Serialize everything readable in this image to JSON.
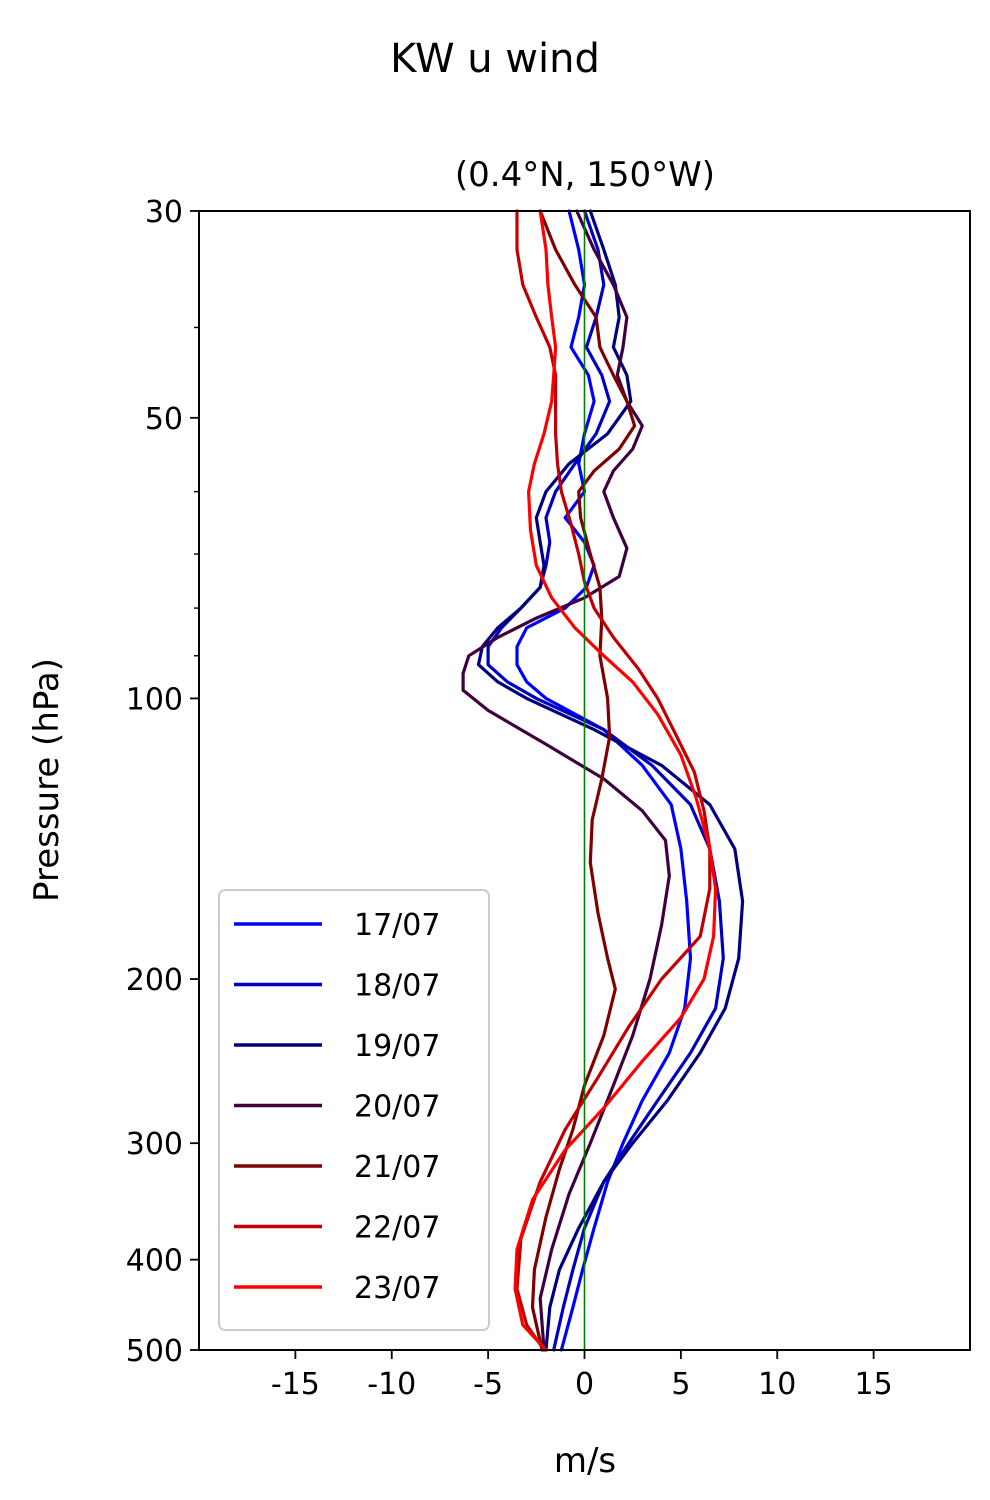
{
  "chart_data": {
    "type": "line",
    "title": "KW u wind",
    "subtitle": "(0.4°N, 150°W)",
    "xlabel": "m/s",
    "ylabel": "Pressure (hPa)",
    "xlim": [
      -20,
      20
    ],
    "ylim": [
      500,
      30
    ],
    "yscale": "log",
    "x_ticks": [
      -15,
      -10,
      -5,
      0,
      5,
      10,
      15
    ],
    "x_tick_labels": [
      "-15",
      "-10",
      "-5",
      "0",
      "5",
      "10",
      "15"
    ],
    "y_ticks": [
      30,
      50,
      100,
      200,
      300,
      400,
      500
    ],
    "y_tick_labels": [
      "30",
      "50",
      "100",
      "200",
      "300",
      "400",
      "500"
    ],
    "y_minor_ticks": [
      40,
      60,
      70,
      80,
      90
    ],
    "legend": "lower-left",
    "grid": false,
    "zero_line": {
      "x": 0,
      "color": "#008000"
    },
    "series": [
      {
        "name": "17/07",
        "color": "#0000ff",
        "values": [
          [
            -0.8,
            30
          ],
          [
            -0.3,
            33
          ],
          [
            0,
            36
          ],
          [
            -0.3,
            39
          ],
          [
            -0.7,
            42
          ],
          [
            0.2,
            45
          ],
          [
            0.5,
            48
          ],
          [
            0,
            52
          ],
          [
            -0.3,
            56
          ],
          [
            0,
            60
          ],
          [
            -1,
            64
          ],
          [
            0,
            68
          ],
          [
            0.5,
            72
          ],
          [
            0.1,
            76
          ],
          [
            -1,
            80
          ],
          [
            -3,
            84
          ],
          [
            -3.5,
            88
          ],
          [
            -3.5,
            92
          ],
          [
            -3,
            96
          ],
          [
            -2,
            100
          ],
          [
            1,
            108
          ],
          [
            3,
            118
          ],
          [
            4.5,
            130
          ],
          [
            5,
            145
          ],
          [
            5.3,
            165
          ],
          [
            5.5,
            190
          ],
          [
            5.2,
            215
          ],
          [
            4.4,
            240
          ],
          [
            3,
            270
          ],
          [
            2,
            300
          ],
          [
            1.2,
            330
          ],
          [
            0.5,
            370
          ],
          [
            -0.1,
            410
          ],
          [
            -0.6,
            450
          ],
          [
            -1.2,
            500
          ]
        ]
      },
      {
        "name": "18/07",
        "color": "#0000c0",
        "values": [
          [
            0,
            30
          ],
          [
            0.7,
            33
          ],
          [
            1,
            36
          ],
          [
            0.6,
            39
          ],
          [
            0.1,
            42
          ],
          [
            0.9,
            45
          ],
          [
            1.3,
            48
          ],
          [
            0.6,
            52
          ],
          [
            -0.5,
            56
          ],
          [
            -1.5,
            60
          ],
          [
            -2,
            64
          ],
          [
            -1.8,
            68
          ],
          [
            -2,
            72
          ],
          [
            -2.3,
            76
          ],
          [
            -3.3,
            80
          ],
          [
            -4.3,
            84
          ],
          [
            -5,
            88
          ],
          [
            -5,
            92
          ],
          [
            -4,
            96
          ],
          [
            -2.5,
            100
          ],
          [
            1,
            108
          ],
          [
            3.5,
            118
          ],
          [
            5.5,
            130
          ],
          [
            6.5,
            145
          ],
          [
            7,
            165
          ],
          [
            7.2,
            190
          ],
          [
            6.8,
            215
          ],
          [
            5.5,
            240
          ],
          [
            3.8,
            270
          ],
          [
            2.3,
            300
          ],
          [
            1,
            330
          ],
          [
            0,
            370
          ],
          [
            -0.6,
            410
          ],
          [
            -1.1,
            450
          ],
          [
            -1.6,
            500
          ]
        ]
      },
      {
        "name": "19/07",
        "color": "#00007f",
        "values": [
          [
            0.3,
            30
          ],
          [
            1,
            33
          ],
          [
            1.6,
            36
          ],
          [
            1.8,
            39
          ],
          [
            1.5,
            42
          ],
          [
            2.2,
            45
          ],
          [
            2.4,
            48
          ],
          [
            1.2,
            52
          ],
          [
            -0.8,
            56
          ],
          [
            -2,
            60
          ],
          [
            -2.5,
            64
          ],
          [
            -2.3,
            68
          ],
          [
            -2.1,
            72
          ],
          [
            -2.3,
            76
          ],
          [
            -3.3,
            80
          ],
          [
            -4.5,
            84
          ],
          [
            -5.3,
            88
          ],
          [
            -5.5,
            92
          ],
          [
            -4.5,
            96
          ],
          [
            -3,
            100
          ],
          [
            0.5,
            108
          ],
          [
            4,
            118
          ],
          [
            6.5,
            130
          ],
          [
            7.8,
            145
          ],
          [
            8.2,
            165
          ],
          [
            8,
            190
          ],
          [
            7.3,
            215
          ],
          [
            6,
            240
          ],
          [
            4.3,
            270
          ],
          [
            2.5,
            300
          ],
          [
            1,
            330
          ],
          [
            -0.3,
            370
          ],
          [
            -1.3,
            410
          ],
          [
            -1.8,
            450
          ],
          [
            -2,
            500
          ]
        ]
      },
      {
        "name": "20/07",
        "color": "#3f003f",
        "values": [
          [
            -0.4,
            30
          ],
          [
            0.5,
            33
          ],
          [
            1.5,
            36
          ],
          [
            2.2,
            39
          ],
          [
            2,
            42
          ],
          [
            1.7,
            45
          ],
          [
            2.2,
            48
          ],
          [
            3,
            51
          ],
          [
            2.5,
            54
          ],
          [
            1.5,
            57
          ],
          [
            1,
            60
          ],
          [
            1.5,
            64
          ],
          [
            2.2,
            69
          ],
          [
            1.8,
            74
          ],
          [
            0,
            78
          ],
          [
            -2.5,
            82
          ],
          [
            -4.5,
            86
          ],
          [
            -6,
            90
          ],
          [
            -6.3,
            94
          ],
          [
            -6.3,
            98
          ],
          [
            -5,
            103
          ],
          [
            -2,
            112
          ],
          [
            1,
            122
          ],
          [
            3,
            132
          ],
          [
            4.2,
            142
          ],
          [
            4.4,
            155
          ],
          [
            4,
            175
          ],
          [
            3.4,
            200
          ],
          [
            2.5,
            230
          ],
          [
            1.5,
            260
          ],
          [
            0.3,
            300
          ],
          [
            -0.8,
            340
          ],
          [
            -1.7,
            390
          ],
          [
            -2.3,
            440
          ],
          [
            -2.1,
            500
          ]
        ]
      },
      {
        "name": "21/07",
        "color": "#7f0000",
        "values": [
          [
            -2.3,
            30
          ],
          [
            -1.5,
            33
          ],
          [
            -0.5,
            36
          ],
          [
            0.6,
            39
          ],
          [
            0.8,
            42
          ],
          [
            1.5,
            45
          ],
          [
            2.2,
            48
          ],
          [
            2.6,
            51
          ],
          [
            1.8,
            54
          ],
          [
            0.5,
            57
          ],
          [
            -0.3,
            60
          ],
          [
            -0.2,
            64
          ],
          [
            0.3,
            70
          ],
          [
            0.8,
            76
          ],
          [
            0.9,
            82
          ],
          [
            0.8,
            90
          ],
          [
            1.2,
            100
          ],
          [
            1.3,
            110
          ],
          [
            0.9,
            122
          ],
          [
            0.4,
            135
          ],
          [
            0.3,
            150
          ],
          [
            0.7,
            170
          ],
          [
            1.2,
            190
          ],
          [
            1.6,
            205
          ],
          [
            1,
            230
          ],
          [
            0,
            260
          ],
          [
            -0.6,
            290
          ],
          [
            -1.3,
            320
          ],
          [
            -2,
            360
          ],
          [
            -2.6,
            410
          ],
          [
            -2.7,
            450
          ],
          [
            -2.2,
            500
          ]
        ]
      },
      {
        "name": "22/07",
        "color": "#bf0000",
        "values": [
          [
            -3.5,
            30
          ],
          [
            -3.5,
            33
          ],
          [
            -3.2,
            36
          ],
          [
            -2.5,
            39
          ],
          [
            -1.8,
            42
          ],
          [
            -1.5,
            45
          ],
          [
            -1.5,
            48
          ],
          [
            -1.5,
            52
          ],
          [
            -1.4,
            56
          ],
          [
            -1.2,
            60
          ],
          [
            -0.7,
            65
          ],
          [
            -0.3,
            70
          ],
          [
            0,
            75
          ],
          [
            0.5,
            80
          ],
          [
            1.5,
            86
          ],
          [
            2.8,
            93
          ],
          [
            3.8,
            100
          ],
          [
            4.8,
            110
          ],
          [
            5.7,
            120
          ],
          [
            6.2,
            132
          ],
          [
            6.5,
            145
          ],
          [
            6.5,
            160
          ],
          [
            6,
            180
          ],
          [
            4,
            200
          ],
          [
            2.3,
            225
          ],
          [
            0.7,
            255
          ],
          [
            -1,
            290
          ],
          [
            -2.3,
            330
          ],
          [
            -3.3,
            380
          ],
          [
            -3.5,
            430
          ],
          [
            -3,
            470
          ],
          [
            -2.1,
            500
          ]
        ]
      },
      {
        "name": "23/07",
        "color": "#ff0000",
        "values": [
          [
            -2.3,
            30
          ],
          [
            -2,
            33
          ],
          [
            -1.9,
            36
          ],
          [
            -1.7,
            39
          ],
          [
            -1.5,
            42
          ],
          [
            -1.6,
            45
          ],
          [
            -1.7,
            48
          ],
          [
            -2.1,
            52
          ],
          [
            -2.6,
            56
          ],
          [
            -2.9,
            60
          ],
          [
            -2.8,
            66
          ],
          [
            -2.5,
            72
          ],
          [
            -1.7,
            78
          ],
          [
            -0.5,
            84
          ],
          [
            1,
            90
          ],
          [
            2.5,
            96
          ],
          [
            3.8,
            104
          ],
          [
            5,
            115
          ],
          [
            5.8,
            128
          ],
          [
            6.5,
            145
          ],
          [
            6.8,
            160
          ],
          [
            6.7,
            180
          ],
          [
            6.2,
            200
          ],
          [
            5,
            220
          ],
          [
            3,
            245
          ],
          [
            1,
            275
          ],
          [
            -1,
            305
          ],
          [
            -2.7,
            345
          ],
          [
            -3.5,
            390
          ],
          [
            -3.6,
            430
          ],
          [
            -3.2,
            470
          ],
          [
            -2,
            500
          ]
        ]
      }
    ]
  }
}
